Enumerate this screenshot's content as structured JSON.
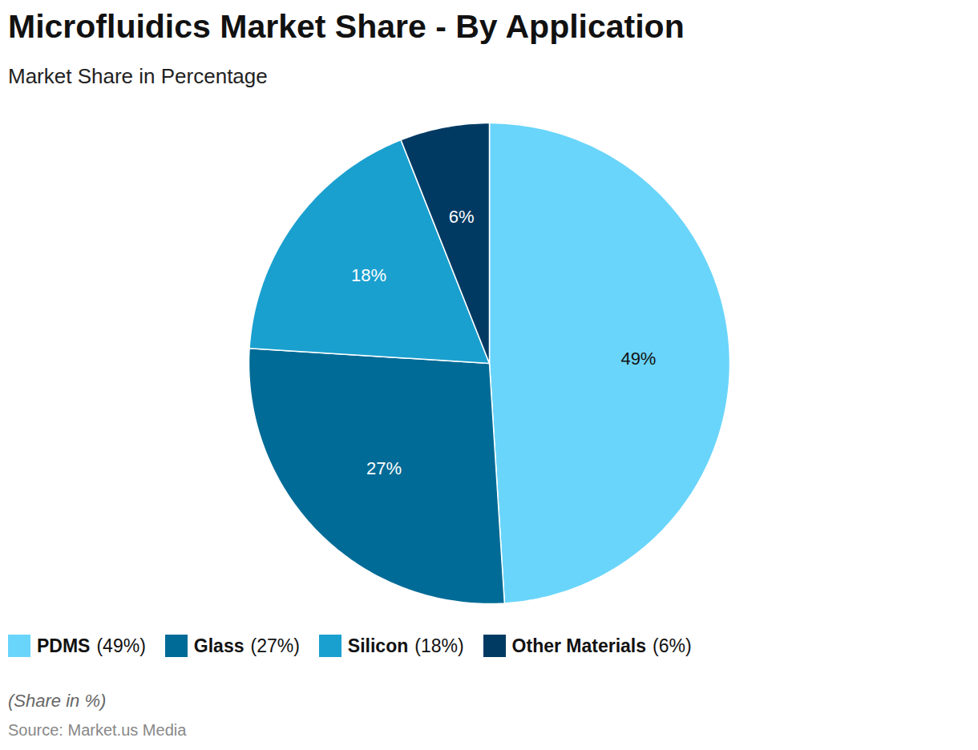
{
  "chart_data": {
    "type": "pie",
    "title": "Microfluidics Market Share - By Application",
    "subtitle": "Market Share in Percentage",
    "categories": [
      "PDMS",
      "Glass",
      "Silicon",
      "Other Materials"
    ],
    "values": [
      49,
      27,
      18,
      6
    ],
    "value_labels": [
      "49%",
      "27%",
      "18%",
      "6%"
    ],
    "legend_value_labels": [
      "(49%)",
      "(27%)",
      "(18%)",
      "(6%)"
    ],
    "colors": [
      "#6ad5fa",
      "#006b96",
      "#1aa0cf",
      "#003a63"
    ],
    "data_labels": true,
    "legend": "bottom",
    "caption": "(Share in %)",
    "source": "Source: Market.us Media"
  }
}
